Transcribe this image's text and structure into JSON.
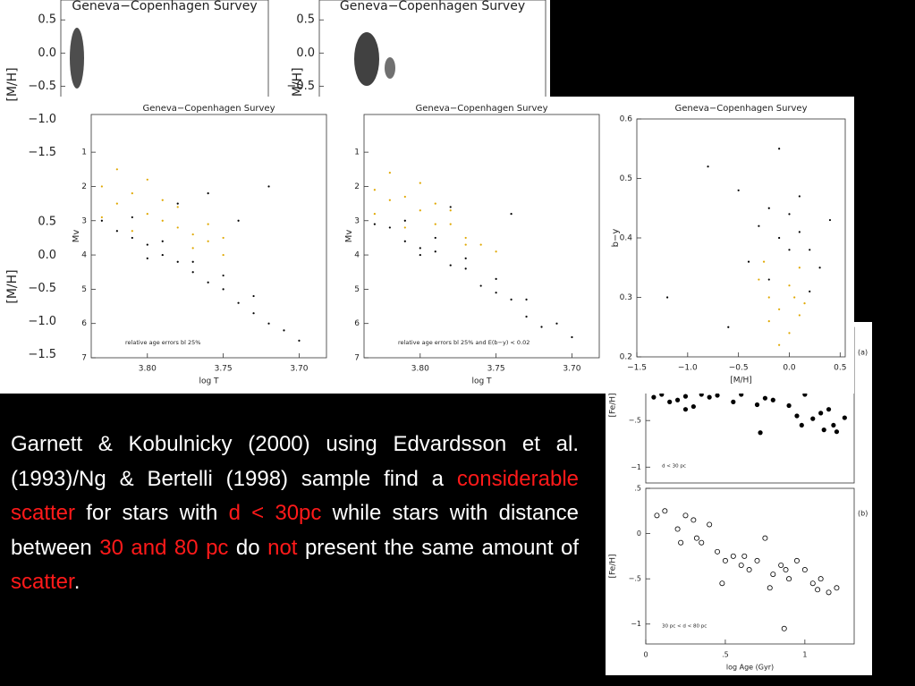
{
  "chart_data": [
    {
      "type": "scatter",
      "title": "Geneva−Copenhagen Survey",
      "y_label": "[M/H]",
      "ylim": [
        -1.75,
        0.8
      ],
      "yticks": [
        0.5,
        {
          "value": 0,
          "label": "0.0"
        },
        {
          "value": -0.5,
          "label": "−0.5"
        },
        {
          "value": -1,
          "label": "−1.0"
        },
        {
          "value": -1.5,
          "label": "−1.5"
        }
      ]
    },
    {
      "type": "scatter",
      "title": "Geneva−Copenhagen Survey",
      "y_label": "[M/H]",
      "ylim": [
        -1.75,
        0.8
      ],
      "yticks": [
        0.5,
        {
          "value": 0,
          "label": "0.0"
        },
        {
          "value": -0.5,
          "label": "−0.5"
        }
      ]
    },
    {
      "type": "scatter",
      "y_label": "[M/H]",
      "ylim": [
        -1.75,
        0.8
      ],
      "yticks": [
        0.5,
        {
          "value": 0,
          "label": "0.0"
        },
        {
          "value": -0.5,
          "label": "−0.5"
        },
        {
          "value": -1,
          "label": "−1.0"
        },
        {
          "value": -1.5,
          "label": "−1.5"
        }
      ]
    },
    {
      "type": "scatter",
      "title": "Geneva−Copenhagen Survey",
      "x_label": "log T",
      "y_label": "Mv",
      "annotation": "relative age errors bl 25%",
      "xlim": [
        3.837,
        3.682
      ],
      "ylim": [
        7,
        -0.1
      ],
      "xticks": [
        {
          "value": 3.8,
          "label": "3.80"
        },
        3.75,
        {
          "value": 3.7,
          "label": "3.70"
        }
      ],
      "yticks": [
        1,
        2,
        3,
        4,
        5,
        6,
        7
      ],
      "series": [
        {
          "color": "#000000",
          "marker": "filled",
          "x": [
            3.83,
            3.82,
            3.81,
            3.8,
            3.79,
            3.78,
            3.77,
            3.76,
            3.75,
            3.74,
            3.73,
            3.72,
            3.81,
            3.79,
            3.77,
            3.75,
            3.73,
            3.71,
            3.78,
            3.76,
            3.7,
            3.72,
            3.8,
            3.74
          ],
          "values": [
            3.0,
            3.3,
            3.5,
            3.7,
            4.0,
            4.2,
            4.5,
            4.8,
            5.0,
            5.4,
            5.7,
            6.0,
            2.9,
            3.6,
            4.2,
            4.6,
            5.2,
            6.2,
            2.5,
            2.2,
            6.5,
            2.0,
            4.1,
            3.0
          ]
        },
        {
          "color": "#e0a800",
          "marker": "filled",
          "x": [
            3.83,
            3.82,
            3.81,
            3.8,
            3.79,
            3.78,
            3.77,
            3.76,
            3.75,
            3.82,
            3.8,
            3.78,
            3.76,
            3.81,
            3.79,
            3.77,
            3.83,
            3.75
          ],
          "values": [
            2.0,
            2.5,
            2.2,
            2.8,
            3.0,
            3.2,
            3.4,
            3.6,
            4.0,
            1.5,
            1.8,
            2.6,
            3.1,
            3.3,
            2.4,
            3.8,
            2.9,
            3.5
          ]
        }
      ]
    },
    {
      "type": "scatter",
      "title": "Geneva−Copenhagen Survey",
      "x_label": "log T",
      "y_label": "Mv",
      "annotation": "relative age errors bl 25% and E(b−y) < 0.02",
      "xlim": [
        3.837,
        3.682
      ],
      "ylim": [
        7,
        -0.1
      ],
      "xticks": [
        {
          "value": 3.8,
          "label": "3.80"
        },
        3.75,
        {
          "value": 3.7,
          "label": "3.70"
        }
      ],
      "yticks": [
        1,
        2,
        3,
        4,
        5,
        6,
        7
      ],
      "series": [
        {
          "color": "#000000",
          "marker": "filled",
          "x": [
            3.83,
            3.82,
            3.81,
            3.8,
            3.79,
            3.78,
            3.77,
            3.76,
            3.75,
            3.74,
            3.73,
            3.72,
            3.81,
            3.79,
            3.77,
            3.75,
            3.73,
            3.71,
            3.78,
            3.7,
            3.8,
            3.74
          ],
          "values": [
            3.1,
            3.2,
            3.6,
            3.8,
            3.9,
            4.3,
            4.4,
            4.9,
            5.1,
            5.3,
            5.8,
            6.1,
            3.0,
            3.5,
            4.1,
            4.7,
            5.3,
            6.0,
            2.6,
            6.4,
            4.0,
            2.8
          ]
        },
        {
          "color": "#e0a800",
          "marker": "filled",
          "x": [
            3.83,
            3.82,
            3.81,
            3.8,
            3.79,
            3.78,
            3.77,
            3.76,
            3.75,
            3.82,
            3.8,
            3.78,
            3.81,
            3.79,
            3.77,
            3.83
          ],
          "values": [
            2.1,
            2.4,
            2.3,
            2.7,
            3.1,
            3.1,
            3.5,
            3.7,
            3.9,
            1.6,
            1.9,
            2.7,
            3.2,
            2.5,
            3.7,
            2.8
          ]
        }
      ]
    },
    {
      "type": "scatter",
      "title": "Geneva−Copenhagen Survey",
      "x_label": "[M/H]",
      "y_label": "b−y",
      "xlim": [
        -1.5,
        0.55
      ],
      "ylim": [
        0.2,
        0.6
      ],
      "xticks": [
        {
          "value": -1.5,
          "label": "−1.5"
        },
        {
          "value": -1,
          "label": "−1.0"
        },
        {
          "value": -0.5,
          "label": "−0.5"
        },
        {
          "value": 0,
          "label": "0.0"
        },
        0.5
      ],
      "yticks": [
        0.6,
        0.5,
        0.4,
        0.3,
        0.2
      ],
      "series": [
        {
          "color": "#000000",
          "marker": "filled",
          "x": [
            -0.3,
            -0.2,
            -0.1,
            0.0,
            0.1,
            0.2,
            -0.4,
            -0.5,
            0.3,
            -0.2,
            0.0,
            0.1,
            -0.8,
            -1.2,
            0.4,
            -0.6,
            -0.1,
            0.2
          ],
          "values": [
            0.42,
            0.45,
            0.4,
            0.44,
            0.41,
            0.38,
            0.36,
            0.48,
            0.35,
            0.33,
            0.38,
            0.47,
            0.52,
            0.3,
            0.43,
            0.25,
            0.55,
            0.31
          ]
        },
        {
          "color": "#e0a800",
          "marker": "filled",
          "x": [
            -0.2,
            -0.1,
            0.0,
            0.1,
            -0.3,
            0.0,
            0.1,
            -0.1,
            -0.2,
            0.05,
            0.15,
            -0.25
          ],
          "values": [
            0.3,
            0.28,
            0.32,
            0.27,
            0.33,
            0.24,
            0.35,
            0.22,
            0.26,
            0.3,
            0.29,
            0.36
          ]
        }
      ]
    },
    {
      "type": "scatter",
      "y_label": "[Fe/H]",
      "annotation": "d < 30 pc",
      "panel_label": "(a)",
      "xlim": [
        0,
        1.31
      ],
      "ylim": [
        -1.17,
        0.5
      ],
      "yticks": [
        {
          "value": -0.5,
          "label": "−.5"
        },
        {
          "value": -1,
          "label": "−1"
        }
      ],
      "series": [
        {
          "color": "#000000",
          "marker": "filled",
          "x": [
            0.05,
            0.1,
            0.15,
            0.2,
            0.25,
            0.3,
            0.35,
            0.4,
            0.45,
            0.55,
            0.6,
            0.7,
            0.72,
            0.8,
            0.9,
            0.95,
            1.0,
            1.05,
            1.1,
            1.12,
            1.15,
            1.2,
            1.25,
            0.25,
            0.75,
            0.98,
            1.18
          ],
          "values": [
            -0.25,
            -0.22,
            -0.3,
            -0.28,
            -0.24,
            -0.35,
            -0.22,
            -0.25,
            -0.23,
            -0.3,
            -0.22,
            -0.33,
            -0.63,
            -0.28,
            -0.34,
            -0.45,
            -0.22,
            -0.48,
            -0.42,
            -0.6,
            -0.38,
            -0.62,
            -0.47,
            -0.38,
            -0.26,
            -0.55,
            -0.55
          ]
        }
      ]
    },
    {
      "type": "scatter",
      "x_label": "log Age (Gyr)",
      "y_label": "[Fe/H]",
      "annotation": "30 pc < d < 80 pc",
      "panel_label": "(b)",
      "xlim": [
        0,
        1.31
      ],
      "ylim": [
        -1.22,
        0.5
      ],
      "xticks": [
        0,
        {
          "value": 0.5,
          "label": ".5"
        },
        1
      ],
      "yticks": [
        {
          "value": 0.5,
          "label": ".5"
        },
        0,
        {
          "value": -0.5,
          "label": "−.5"
        },
        {
          "value": -1,
          "label": "−1"
        }
      ],
      "series": [
        {
          "color": "#000000",
          "marker": "open",
          "x": [
            0.07,
            0.12,
            0.2,
            0.25,
            0.3,
            0.35,
            0.4,
            0.45,
            0.5,
            0.55,
            0.6,
            0.65,
            0.7,
            0.75,
            0.8,
            0.85,
            0.9,
            0.95,
            1.0,
            1.05,
            1.1,
            1.15,
            1.2,
            0.22,
            0.32,
            0.48,
            0.62,
            0.78,
            0.88,
            1.08,
            0.87
          ],
          "values": [
            0.2,
            0.25,
            0.05,
            0.2,
            0.15,
            -0.1,
            0.1,
            -0.2,
            -0.3,
            -0.25,
            -0.35,
            -0.4,
            -0.3,
            -0.05,
            -0.45,
            -0.35,
            -0.5,
            -0.3,
            -0.4,
            -0.55,
            -0.5,
            -0.65,
            -0.6,
            -0.1,
            -0.05,
            -0.55,
            -0.25,
            -0.6,
            -0.4,
            -0.62,
            -1.05
          ]
        }
      ]
    }
  ],
  "text": {
    "highlight_color": "#ff1a1a",
    "segments": [
      {
        "text": "Garnett & Kobulnicky (2000) using Edvardsson et al. (1993)/Ng & Bertelli (1998) sample find a ",
        "highlight": false
      },
      {
        "text": "considerable scatter",
        "highlight": true
      },
      {
        "text": " for stars with ",
        "highlight": false
      },
      {
        "text": "d < 30pc",
        "highlight": true
      },
      {
        "text": " while stars with distance between ",
        "highlight": false
      },
      {
        "text": "30 and 80 pc",
        "highlight": true
      },
      {
        "text": " do ",
        "highlight": false
      },
      {
        "text": "not",
        "highlight": true
      },
      {
        "text": " present the same amount of ",
        "highlight": false
      },
      {
        "text": "scatter",
        "highlight": true
      },
      {
        "text": ".",
        "highlight": false
      }
    ]
  }
}
